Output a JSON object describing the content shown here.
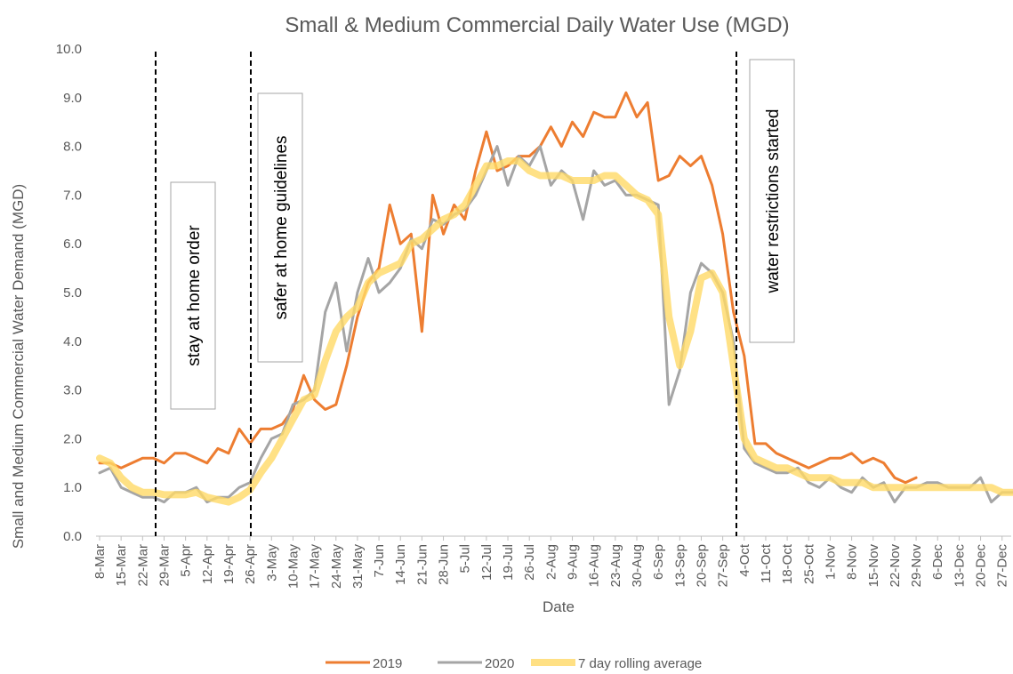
{
  "chart_data": {
    "type": "line",
    "title": "Small & Medium Commercial Daily Water Use (MGD)",
    "x_label": "Date",
    "y_label": "Small and Medium Commercial Water Demand (MGD)",
    "categories": [
      "8-Mar",
      null,
      "15-Mar",
      null,
      "22-Mar",
      null,
      "29-Mar",
      null,
      "5-Apr",
      null,
      "12-Apr",
      null,
      "19-Apr",
      null,
      "26-Apr",
      null,
      "3-May",
      null,
      "10-May",
      null,
      "17-May",
      null,
      "24-May",
      null,
      "31-May",
      null,
      "7-Jun",
      null,
      "14-Jun",
      null,
      "21-Jun",
      null,
      "28-Jun",
      null,
      "5-Jul",
      null,
      "12-Jul",
      null,
      "19-Jul",
      null,
      "26-Jul",
      null,
      "2-Aug",
      null,
      "9-Aug",
      null,
      "16-Aug",
      null,
      "23-Aug",
      null,
      "30-Aug",
      null,
      "6-Sep",
      null,
      "13-Sep",
      null,
      "20-Sep",
      null,
      "27-Sep",
      null,
      "4-Oct",
      null,
      "11-Oct",
      null,
      "18-Oct",
      null,
      "25-Oct",
      null,
      "1-Nov",
      null,
      "8-Nov",
      null,
      "15-Nov",
      null,
      "22-Nov",
      null,
      "29-Nov",
      null,
      "6-Dec",
      null,
      "13-Dec",
      null,
      "20-Dec",
      null,
      "27-Dec",
      null
    ],
    "series": [
      {
        "name": "2019",
        "color": "#ed7d31",
        "values": [
          1.5,
          1.5,
          1.4,
          1.5,
          1.6,
          1.6,
          1.5,
          1.7,
          1.7,
          1.6,
          1.5,
          1.8,
          1.7,
          2.2,
          1.9,
          2.2,
          2.2,
          2.3,
          2.6,
          3.3,
          2.8,
          2.6,
          2.7,
          3.5,
          4.5,
          5.2,
          5.5,
          6.8,
          6.0,
          6.2,
          4.2,
          7.0,
          6.2,
          6.8,
          6.5,
          7.5,
          8.3,
          7.5,
          7.6,
          7.8,
          7.8,
          8.0,
          8.4,
          8.0,
          8.5,
          8.2,
          8.7,
          8.6,
          8.6,
          9.1,
          8.6,
          8.9,
          7.3,
          7.4,
          7.8,
          7.6,
          7.8,
          7.2,
          6.2,
          4.6,
          3.7,
          1.9,
          1.9,
          1.7,
          1.6,
          1.5,
          1.4,
          1.5,
          1.6,
          1.6,
          1.7,
          1.5,
          1.6,
          1.5,
          1.2,
          1.1,
          1.2,
          null,
          null,
          null,
          null,
          null,
          null,
          null,
          null,
          null
        ]
      },
      {
        "name": "2020",
        "color": "#a5a5a5",
        "values": [
          1.3,
          1.4,
          1.0,
          0.9,
          0.8,
          0.8,
          0.7,
          0.9,
          0.9,
          1.0,
          0.7,
          0.8,
          0.8,
          1.0,
          1.1,
          1.6,
          2.0,
          2.1,
          2.7,
          2.8,
          3.0,
          4.6,
          5.2,
          3.8,
          5.0,
          5.7,
          5.0,
          5.2,
          5.5,
          6.1,
          5.9,
          6.5,
          6.4,
          6.6,
          6.7,
          7.0,
          7.5,
          8.0,
          7.2,
          7.8,
          7.6,
          8.0,
          7.2,
          7.5,
          7.3,
          6.5,
          7.5,
          7.2,
          7.3,
          7.0,
          7.0,
          6.9,
          6.8,
          2.7,
          3.4,
          5.0,
          5.6,
          5.4,
          5.0,
          4.0,
          1.8,
          1.5,
          1.4,
          1.3,
          1.3,
          1.4,
          1.1,
          1.0,
          1.2,
          1.0,
          0.9,
          1.2,
          1.0,
          1.1,
          0.7,
          1.0,
          1.0,
          1.1,
          1.1,
          1.0,
          1.0,
          1.0,
          1.2,
          0.7,
          0.9,
          0.9
        ]
      },
      {
        "name": "7 day rolling average",
        "color": "#ffd966",
        "values": [
          1.6,
          1.5,
          1.2,
          1.0,
          0.9,
          0.9,
          0.85,
          0.85,
          0.85,
          0.9,
          0.8,
          0.75,
          0.7,
          0.8,
          0.95,
          1.3,
          1.6,
          2.0,
          2.4,
          2.8,
          2.9,
          3.6,
          4.2,
          4.5,
          4.7,
          5.2,
          5.4,
          5.5,
          5.6,
          6.0,
          6.1,
          6.3,
          6.5,
          6.6,
          6.8,
          7.2,
          7.6,
          7.6,
          7.7,
          7.7,
          7.5,
          7.4,
          7.4,
          7.4,
          7.3,
          7.3,
          7.3,
          7.4,
          7.4,
          7.2,
          7.0,
          6.9,
          6.6,
          4.5,
          3.5,
          4.2,
          5.3,
          5.4,
          5.0,
          3.5,
          2.0,
          1.6,
          1.5,
          1.4,
          1.4,
          1.3,
          1.2,
          1.2,
          1.2,
          1.1,
          1.1,
          1.1,
          1.0,
          1.0,
          1.0,
          1.0,
          1.0,
          1.0,
          1.0,
          1.0,
          1.0,
          1.0,
          1.0,
          1.0,
          0.9,
          0.9
        ]
      }
    ],
    "ylim": [
      0,
      10
    ],
    "yticks": [
      {
        "value": 0,
        "label": "0.0"
      },
      {
        "value": 1,
        "label": "1.0"
      },
      {
        "value": 2,
        "label": "2.0"
      },
      {
        "value": 3,
        "label": "3.0"
      },
      {
        "value": 4,
        "label": "4.0"
      },
      {
        "value": 5,
        "label": "5.0"
      },
      {
        "value": 6,
        "label": "6.0"
      },
      {
        "value": 7,
        "label": "7.0"
      },
      {
        "value": 8,
        "label": "8.0"
      },
      {
        "value": 9,
        "label": "9.0"
      },
      {
        "value": 10,
        "label": "10.0"
      }
    ],
    "annotations": [
      "stay at home order",
      "safer at home guidelines",
      "water restrictions started"
    ],
    "legend": "bottom"
  }
}
